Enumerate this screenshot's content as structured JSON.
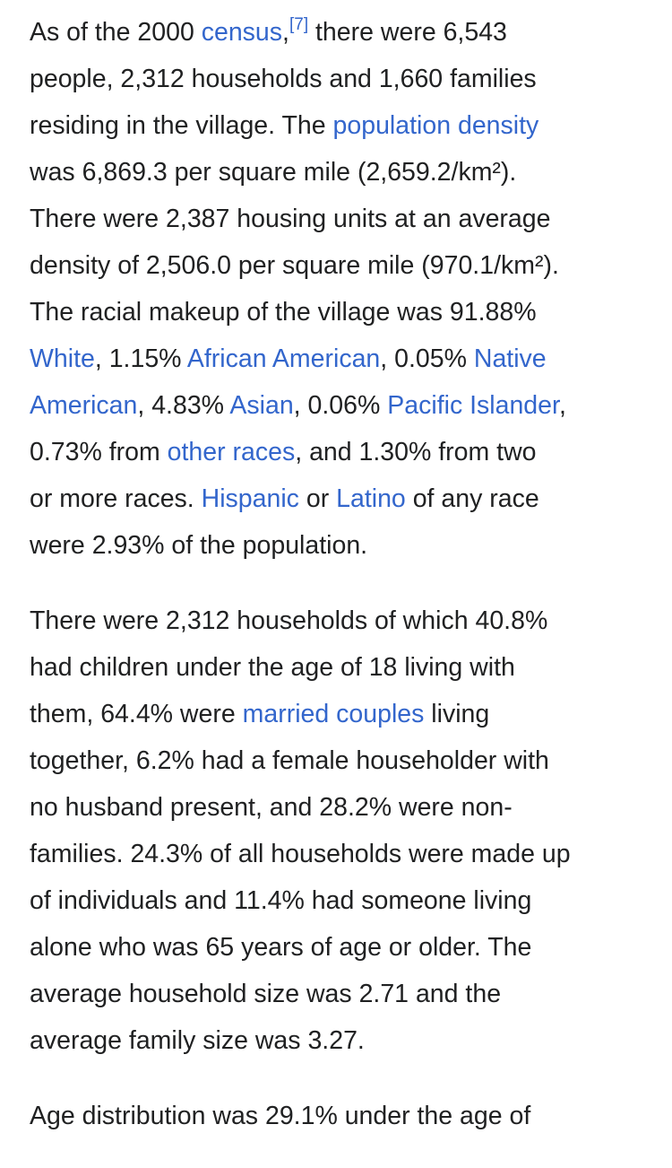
{
  "paragraphs": [
    {
      "lines": [
        [
          {
            "t": "As of the 2000 "
          },
          {
            "t": "census",
            "link": true,
            "name": "link-census"
          },
          {
            "t": ","
          },
          {
            "t": "[7]",
            "ref": true,
            "name": "reference-7"
          },
          {
            "t": " there were 6,543"
          }
        ],
        [
          {
            "t": "people, 2,312 households and 1,660 families"
          }
        ],
        [
          {
            "t": "residing in the village. The "
          },
          {
            "t": "population density",
            "link": true,
            "name": "link-population-density"
          }
        ],
        [
          {
            "t": "was 6,869.3 per square mile (2,659.2/km²)."
          }
        ],
        [
          {
            "t": "There were 2,387 housing units at an average"
          }
        ],
        [
          {
            "t": "density of 2,506.0 per square mile (970.1/km²)."
          }
        ],
        [
          {
            "t": "The racial makeup of the village was 91.88%"
          }
        ],
        [
          {
            "t": "White",
            "link": true,
            "name": "link-white"
          },
          {
            "t": ", 1.15% "
          },
          {
            "t": "African American",
            "link": true,
            "name": "link-african-american"
          },
          {
            "t": ", 0.05% "
          },
          {
            "t": "Native",
            "link": true,
            "name": "link-native-american"
          }
        ],
        [
          {
            "t": "American",
            "link": true,
            "name": "link-native-american"
          },
          {
            "t": ", 4.83% "
          },
          {
            "t": "Asian",
            "link": true,
            "name": "link-asian"
          },
          {
            "t": ", 0.06% "
          },
          {
            "t": "Pacific Islander",
            "link": true,
            "name": "link-pacific-islander"
          },
          {
            "t": ","
          }
        ],
        [
          {
            "t": "0.73% from "
          },
          {
            "t": "other races",
            "link": true,
            "name": "link-other-races"
          },
          {
            "t": ", and 1.30% from two"
          }
        ],
        [
          {
            "t": "or more races. "
          },
          {
            "t": "Hispanic",
            "link": true,
            "name": "link-hispanic"
          },
          {
            "t": " or "
          },
          {
            "t": "Latino",
            "link": true,
            "name": "link-latino"
          },
          {
            "t": " of any race"
          }
        ],
        [
          {
            "t": "were 2.93% of the population."
          }
        ]
      ]
    },
    {
      "lines": [
        [
          {
            "t": "There were 2,312 households of which 40.8%"
          }
        ],
        [
          {
            "t": "had children under the age of 18 living with"
          }
        ],
        [
          {
            "t": "them, 64.4% were "
          },
          {
            "t": "married couples",
            "link": true,
            "name": "link-married-couples"
          },
          {
            "t": " living"
          }
        ],
        [
          {
            "t": "together, 6.2% had a female householder with"
          }
        ],
        [
          {
            "t": "no husband present, and 28.2% were non-"
          }
        ],
        [
          {
            "t": "families. 24.3% of all households were made up"
          }
        ],
        [
          {
            "t": "of individuals and 11.4% had someone living"
          }
        ],
        [
          {
            "t": "alone who was 65 years of age or older. The"
          }
        ],
        [
          {
            "t": "average household size was 2.71 and the"
          }
        ],
        [
          {
            "t": "average family size was 3.27."
          }
        ]
      ]
    },
    {
      "lines": [
        [
          {
            "t": "Age distribution was 29.1% under the age of"
          }
        ]
      ]
    }
  ]
}
